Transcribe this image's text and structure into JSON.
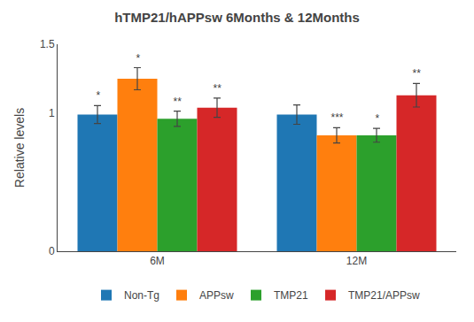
{
  "chart_data": {
    "type": "bar",
    "title": "hTMP21/hAPPsw 6Months & 12Months",
    "ylabel": "Relative levels",
    "categories": [
      "6M",
      "12M"
    ],
    "series": [
      {
        "name": "Non-Tg",
        "values": [
          0.99,
          0.99
        ],
        "errors": [
          0.065,
          0.07
        ],
        "significance": [
          "*",
          null
        ]
      },
      {
        "name": "APPsw",
        "values": [
          1.25,
          0.84
        ],
        "errors": [
          0.08,
          0.055
        ],
        "significance": [
          "*",
          "***"
        ]
      },
      {
        "name": "TMP21",
        "values": [
          0.96,
          0.84
        ],
        "errors": [
          0.055,
          0.05
        ],
        "significance": [
          "**",
          "*"
        ]
      },
      {
        "name": "TMP21/APPsw",
        "values": [
          1.04,
          1.13
        ],
        "errors": [
          0.07,
          0.085
        ],
        "significance": [
          "**",
          "**"
        ]
      }
    ],
    "ylim": [
      0,
      1.5
    ],
    "yticks": [
      0,
      1,
      1.5
    ],
    "grid": false,
    "legend": "bottom"
  }
}
